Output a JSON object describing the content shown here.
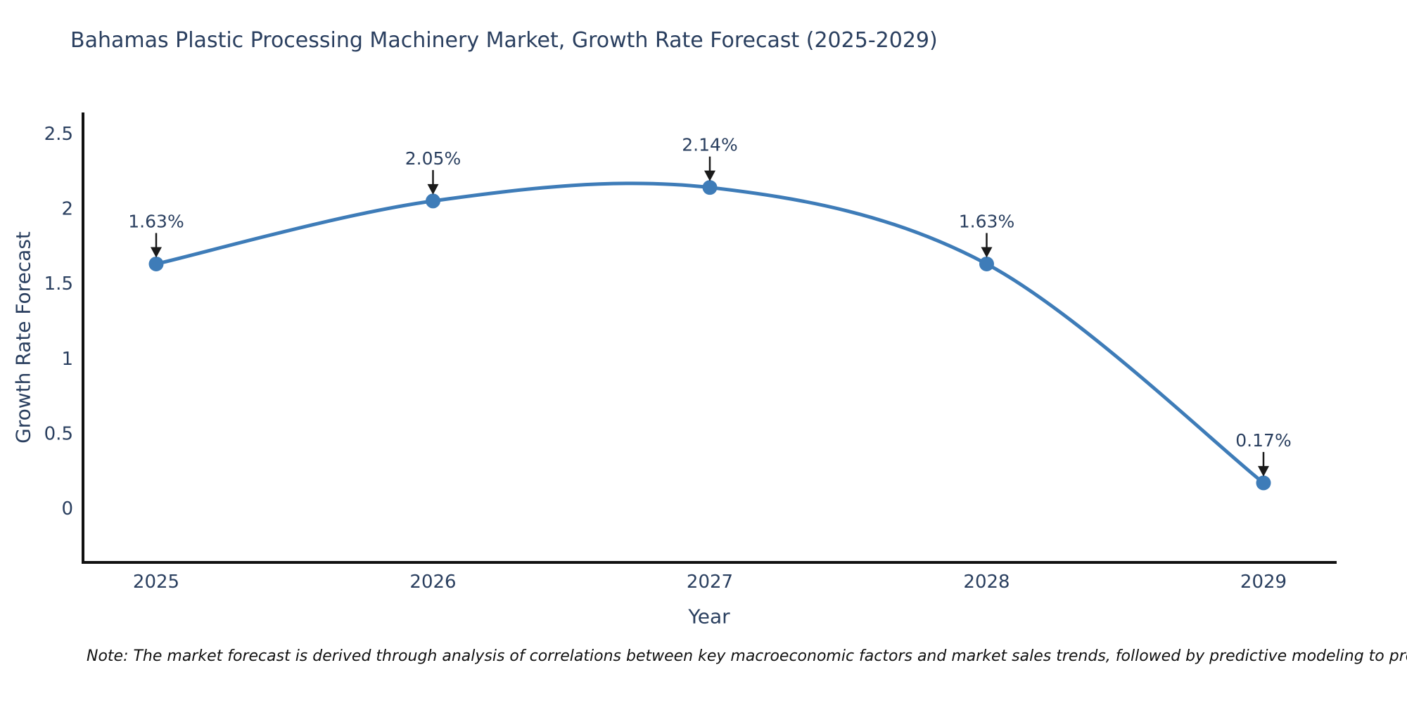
{
  "title": "Bahamas Plastic Processing Machinery Market, Growth Rate Forecast (2025-2029)",
  "note": "Note: The market forecast is derived through analysis of correlations between key macroeconomic factors and market sales trends, followed by predictive modeling to project future sales",
  "chart_data": {
    "type": "line",
    "title": "Bahamas Plastic Processing Machinery Market, Growth Rate Forecast (2025-2029)",
    "x": [
      2025,
      2026,
      2027,
      2028,
      2029
    ],
    "series": [
      {
        "name": "Growth Rate Forecast",
        "values": [
          1.63,
          2.05,
          2.14,
          1.63,
          0.17
        ]
      }
    ],
    "point_labels": [
      "1.63%",
      "2.05%",
      "2.14%",
      "1.63%",
      "0.17%"
    ],
    "xlabel": "Year",
    "ylabel": "Growth Rate Forecast",
    "yticks": [
      0,
      0.5,
      1,
      1.5,
      2,
      2.5
    ],
    "ylim": [
      -0.36,
      2.64
    ],
    "line_shape": "spline",
    "grid": false,
    "legend": "none",
    "colors": {
      "line": "#3e7cb8",
      "marker": "#3e7cb8",
      "arrow": "#1a1a1a",
      "axis": "#111111",
      "text": "#2a3f5f",
      "note_text": "#111111",
      "background": "#ffffff"
    }
  }
}
